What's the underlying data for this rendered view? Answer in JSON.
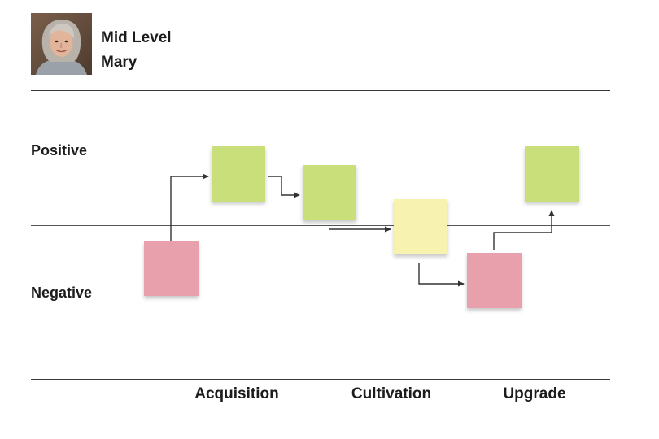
{
  "persona": {
    "line1": "Mid Level",
    "line2": "Mary"
  },
  "rows": {
    "positive": "Positive",
    "negative": "Negative"
  },
  "stages": [
    "Acquisition",
    "Cultivation",
    "Upgrade"
  ],
  "notes": [
    {
      "sentiment": "negative",
      "color": "#e8a1ac"
    },
    {
      "sentiment": "positive",
      "color": "#c9df79"
    },
    {
      "sentiment": "positive",
      "color": "#c9df79"
    },
    {
      "sentiment": "neutral",
      "color": "#f8f2b0"
    },
    {
      "sentiment": "negative",
      "color": "#e8a1ac"
    },
    {
      "sentiment": "positive",
      "color": "#c9df79"
    }
  ],
  "icons": {
    "avatar": "person-portrait-icon",
    "arrow": "arrow-right-icon"
  },
  "colors": {
    "line": "#3a3a3a",
    "arrow": "#333333",
    "positive_note": "#c9df79",
    "neutral_note": "#f8f2b0",
    "negative_note": "#e8a1ac"
  }
}
